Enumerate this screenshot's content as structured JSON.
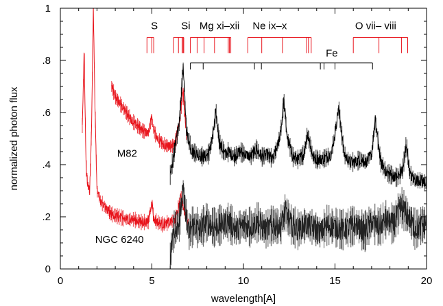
{
  "chart_data": {
    "type": "line",
    "xlabel": "wavelength[A]",
    "ylabel": "normalized photon flux",
    "xlim": [
      0,
      20
    ],
    "ylim": [
      0,
      1
    ],
    "x_ticks": [
      0,
      5,
      10,
      15,
      20
    ],
    "x_tick_labels": [
      "0",
      "5",
      "10",
      "15",
      "20"
    ],
    "y_ticks": [
      0,
      0.2,
      0.4,
      0.6,
      0.8,
      1
    ],
    "y_tick_labels": [
      "0",
      ".2",
      ".4",
      ".6",
      ".8",
      "1"
    ],
    "grid": false,
    "colors": {
      "red": "#e8141c",
      "black": "#000000",
      "dark": "#222222"
    },
    "series": [
      {
        "name": "M82",
        "label_x": 3.1,
        "label_y": 0.43,
        "segments": [
          {
            "color": "red",
            "x": [
              2.8,
              3.0,
              3.3,
              3.6,
              3.9,
              4.2,
              4.5,
              4.8,
              5.0,
              5.1,
              5.3,
              5.6,
              5.9,
              6.1,
              6.3,
              6.5,
              6.7,
              6.9
            ],
            "y": [
              0.7,
              0.66,
              0.63,
              0.6,
              0.57,
              0.55,
              0.53,
              0.52,
              0.58,
              0.53,
              0.5,
              0.48,
              0.47,
              0.47,
              0.49,
              0.56,
              0.68,
              0.5
            ]
          },
          {
            "color": "black",
            "x": [
              6.0,
              6.2,
              6.5,
              6.7,
              6.9,
              7.2,
              7.5,
              7.8,
              8.1,
              8.3,
              8.5,
              8.7,
              9.0,
              9.2,
              9.5,
              9.8,
              10.1,
              10.4,
              10.7,
              11.0,
              11.3,
              11.6,
              11.9,
              12.1,
              12.2,
              12.4,
              12.7,
              13.0,
              13.3,
              13.5,
              13.8,
              14.0,
              14.3,
              14.6,
              14.8,
              15.0,
              15.2,
              15.5,
              15.8,
              16.1,
              16.4,
              16.7,
              17.0,
              17.2,
              17.5,
              17.8,
              18.1,
              18.4,
              18.7,
              18.9,
              19.1,
              19.4,
              19.7,
              20.0
            ],
            "y": [
              0.36,
              0.44,
              0.56,
              0.78,
              0.52,
              0.45,
              0.44,
              0.43,
              0.44,
              0.5,
              0.6,
              0.48,
              0.44,
              0.45,
              0.43,
              0.45,
              0.44,
              0.43,
              0.46,
              0.43,
              0.44,
              0.42,
              0.48,
              0.56,
              0.65,
              0.5,
              0.43,
              0.42,
              0.44,
              0.52,
              0.43,
              0.42,
              0.42,
              0.43,
              0.44,
              0.52,
              0.62,
              0.44,
              0.41,
              0.41,
              0.42,
              0.41,
              0.44,
              0.57,
              0.41,
              0.37,
              0.36,
              0.35,
              0.38,
              0.48,
              0.36,
              0.34,
              0.34,
              0.33
            ]
          }
        ]
      },
      {
        "name": "NGC 6240",
        "label_x": 1.9,
        "label_y": 0.1,
        "segments": [
          {
            "color": "red",
            "x": [
              1.2,
              1.3,
              1.4,
              1.5,
              1.6,
              1.7,
              1.8,
              1.9,
              2.0,
              2.2,
              2.5,
              2.8,
              3.2,
              3.6,
              4.0,
              4.4,
              4.8,
              5.0,
              5.1,
              5.3,
              5.6,
              6.0,
              6.3,
              6.6,
              6.8,
              7.0
            ],
            "y": [
              0.55,
              0.85,
              0.4,
              0.32,
              0.3,
              0.52,
              1.0,
              0.6,
              0.3,
              0.26,
              0.23,
              0.21,
              0.2,
              0.19,
              0.19,
              0.18,
              0.18,
              0.26,
              0.19,
              0.18,
              0.17,
              0.18,
              0.19,
              0.28,
              0.22,
              0.17
            ]
          },
          {
            "color": "dark",
            "x": [
              6.0,
              6.2,
              6.5,
              6.7,
              7.0,
              7.3,
              7.6,
              8.0,
              8.4,
              8.8,
              9.2,
              9.6,
              10.0,
              10.4,
              10.8,
              11.2,
              11.6,
              12.0,
              12.3,
              12.6,
              13.0,
              13.4,
              13.8,
              14.2,
              14.6,
              15.0,
              15.4,
              15.8,
              16.2,
              16.6,
              17.0,
              17.4,
              17.8,
              18.2,
              18.6,
              19.0,
              19.4,
              19.8,
              20.0
            ],
            "y": [
              0.05,
              0.15,
              0.18,
              0.3,
              0.14,
              0.17,
              0.15,
              0.18,
              0.16,
              0.17,
              0.18,
              0.15,
              0.17,
              0.16,
              0.18,
              0.15,
              0.17,
              0.16,
              0.22,
              0.17,
              0.15,
              0.17,
              0.16,
              0.14,
              0.17,
              0.16,
              0.15,
              0.16,
              0.17,
              0.14,
              0.18,
              0.16,
              0.19,
              0.17,
              0.24,
              0.2,
              0.15,
              0.17,
              0.18
            ]
          }
        ]
      }
    ],
    "line_groups": [
      {
        "label": "S",
        "color": "red",
        "label_x": 4.95,
        "y_top": 0.888,
        "y_bottom": 0.828,
        "label_y": 0.92,
        "lines": [
          4.73,
          5.0,
          5.1
        ]
      },
      {
        "label": "Si",
        "color": "red",
        "label_x": 6.6,
        "y_top": 0.888,
        "y_bottom": 0.828,
        "label_y": 0.92,
        "lines": [
          6.18,
          6.45,
          6.65,
          6.7,
          6.74
        ]
      },
      {
        "label": "Mg xi–xii",
        "color": "red",
        "label_x": 7.6,
        "y_top": 0.888,
        "y_bottom": 0.828,
        "label_y": 0.92,
        "lines": [
          7.1,
          7.47,
          7.85,
          8.42,
          9.17,
          9.23,
          9.31
        ]
      },
      {
        "label": "Ne ix–x",
        "color": "red",
        "label_x": 10.5,
        "y_top": 0.888,
        "y_bottom": 0.828,
        "label_y": 0.92,
        "lines": [
          10.24,
          11.0,
          12.13,
          13.45,
          13.55,
          13.7
        ]
      },
      {
        "label": "O vii– viii",
        "color": "red",
        "label_x": 16.1,
        "y_top": 0.888,
        "y_bottom": 0.828,
        "label_y": 0.92,
        "lines": [
          16.0,
          17.4,
          18.63,
          18.97
        ]
      },
      {
        "label": "Fe",
        "color": "black",
        "label_x": 14.5,
        "y_top": 0.79,
        "y_bottom": 0.765,
        "label_y": 0.815,
        "lines": [
          7.1,
          7.8,
          10.6,
          10.98,
          14.2,
          14.4,
          15.0,
          17.05
        ]
      }
    ]
  }
}
